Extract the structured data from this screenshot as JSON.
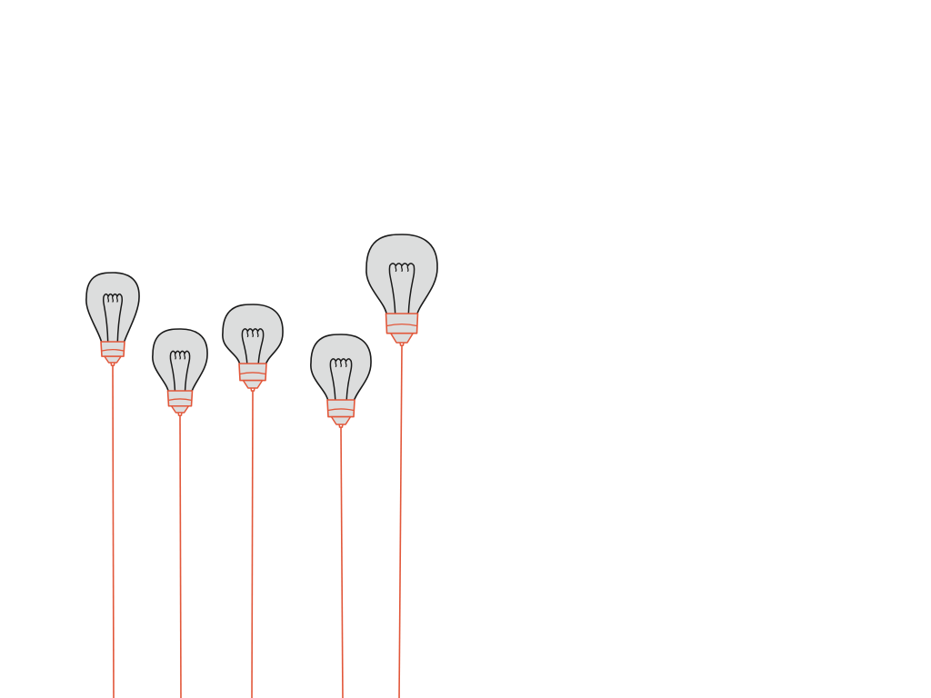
{
  "colors": {
    "background": "#ffffff",
    "bulb_fill": "#dcdddd",
    "outline": "#1a1a1a",
    "base_and_string": "#e2573a"
  },
  "icons": {
    "bulb": "light-bulb-icon",
    "filament": "filament-icon",
    "screw_base": "screw-base-icon",
    "string": "string-line"
  },
  "bulbs": [
    {
      "id": "bulb-1"
    },
    {
      "id": "bulb-2"
    },
    {
      "id": "bulb-3"
    },
    {
      "id": "bulb-4"
    },
    {
      "id": "bulb-5"
    }
  ]
}
